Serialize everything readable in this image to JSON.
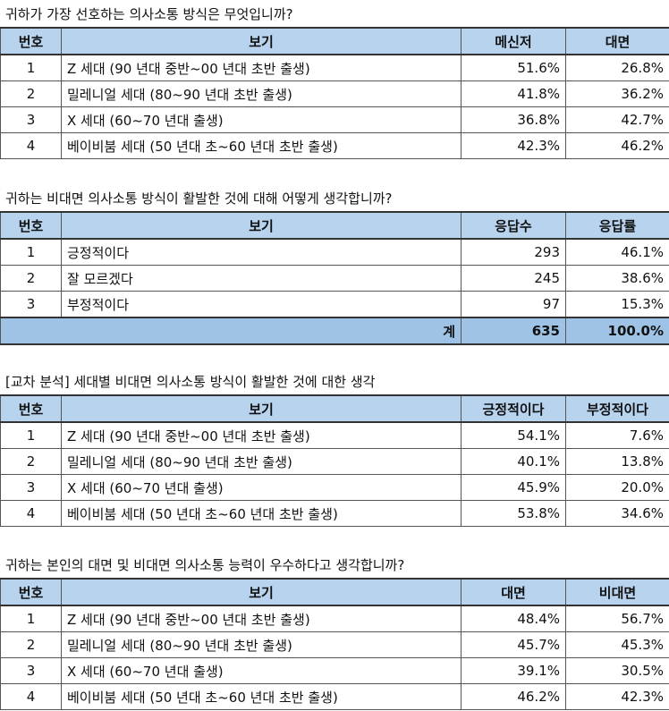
{
  "q1": {
    "title": "귀하가 가장 선호하는 의사소통 방식은 무엇입니까?",
    "headers": [
      "번호",
      "보기",
      "메신저",
      "대면"
    ],
    "rows": [
      [
        "1",
        "Z 세대 (90 년대 중반~00 년대 초반 출생)",
        "51.6%",
        "26.8%"
      ],
      [
        "2",
        "밀레니얼 세대 (80~90 년대 초반 출생)",
        "41.8%",
        "36.2%"
      ],
      [
        "3",
        "X 세대 (60~70 년대 출생)",
        "36.8%",
        "42.7%"
      ],
      [
        "4",
        "베이비붐 세대 (50 년대 초~60 년대 초반 출생)",
        "42.3%",
        "46.2%"
      ]
    ]
  },
  "q2": {
    "title": "귀하는 비대면 의사소통 방식이 활발한 것에 대해 어떻게 생각합니까?",
    "headers": [
      "번호",
      "보기",
      "응답수",
      "응답률"
    ],
    "rows": [
      [
        "1",
        "긍정적이다",
        "293",
        "46.1%"
      ],
      [
        "2",
        "잘 모르겠다",
        "245",
        "38.6%"
      ],
      [
        "3",
        "부정적이다",
        "97",
        "15.3%"
      ]
    ],
    "total": {
      "label": "계",
      "count": "635",
      "rate": "100.0%"
    }
  },
  "q3": {
    "title": "[교차 분석] 세대별 비대면 의사소통 방식이 활발한 것에 대한 생각",
    "headers": [
      "번호",
      "보기",
      "긍정적이다",
      "부정적이다"
    ],
    "rows": [
      [
        "1",
        "Z 세대 (90 년대 중반~00 년대 초반 출생)",
        "54.1%",
        "7.6%"
      ],
      [
        "2",
        "밀레니얼 세대 (80~90 년대 초반 출생)",
        "40.1%",
        "13.8%"
      ],
      [
        "3",
        "X 세대 (60~70 년대 출생)",
        "45.9%",
        "20.0%"
      ],
      [
        "4",
        "베이비붐 세대 (50 년대 초~60 년대 초반 출생)",
        "53.8%",
        "34.6%"
      ]
    ]
  },
  "q4": {
    "title": "귀하는 본인의 대면 및 비대면 의사소통 능력이 우수하다고 생각합니까?",
    "headers": [
      "번호",
      "보기",
      "대면",
      "비대면"
    ],
    "rows": [
      [
        "1",
        "Z 세대 (90 년대 중반~00 년대 초반 출생)",
        "48.4%",
        "56.7%"
      ],
      [
        "2",
        "밀레니얼 세대 (80~90 년대 초반 출생)",
        "45.7%",
        "45.3%"
      ],
      [
        "3",
        "X 세대 (60~70 년대 출생)",
        "39.1%",
        "30.5%"
      ],
      [
        "4",
        "베이비붐 세대 (50 년대 초~60 년대 초반 출생)",
        "46.2%",
        "42.3%"
      ]
    ]
  }
}
